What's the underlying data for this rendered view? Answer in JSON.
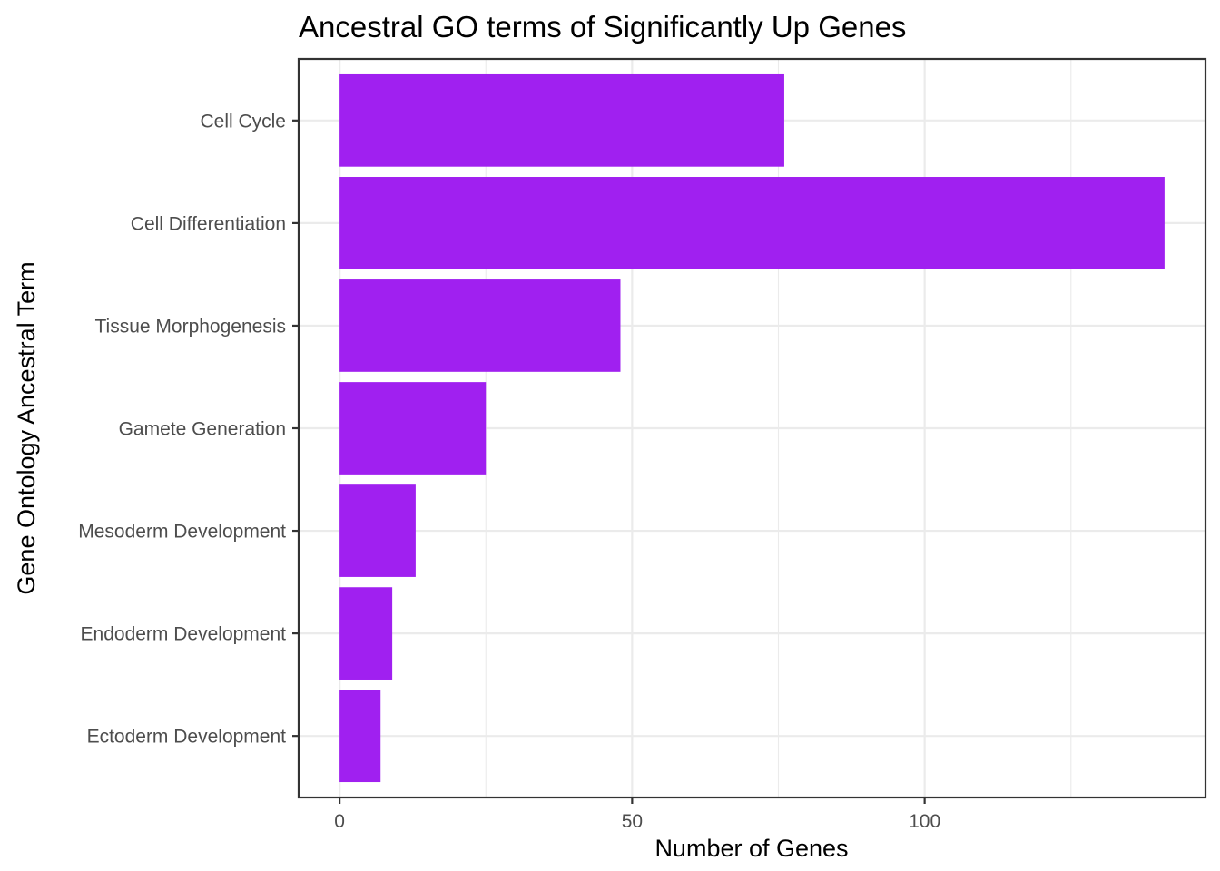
{
  "chart_data": {
    "type": "bar",
    "orientation": "horizontal",
    "title": "Ancestral GO terms of Significantly Up Genes",
    "xlabel": "Number of Genes",
    "ylabel": "Gene Ontology Ancestral Term",
    "categories": [
      "Cell Cycle",
      "Cell Differentiation",
      "Tissue Morphogenesis",
      "Gamete Generation",
      "Mesoderm Development",
      "Endoderm Development",
      "Ectoderm Development"
    ],
    "values": [
      76,
      141,
      48,
      25,
      13,
      9,
      7
    ],
    "xlim": [
      -7,
      148
    ],
    "xticks": [
      0,
      50,
      100
    ],
    "xticklabels": [
      "0",
      "50",
      "100"
    ],
    "minor_xticks": [
      25,
      75,
      125
    ],
    "grid": true,
    "legend": "none",
    "bar_color": "#a020f0"
  }
}
